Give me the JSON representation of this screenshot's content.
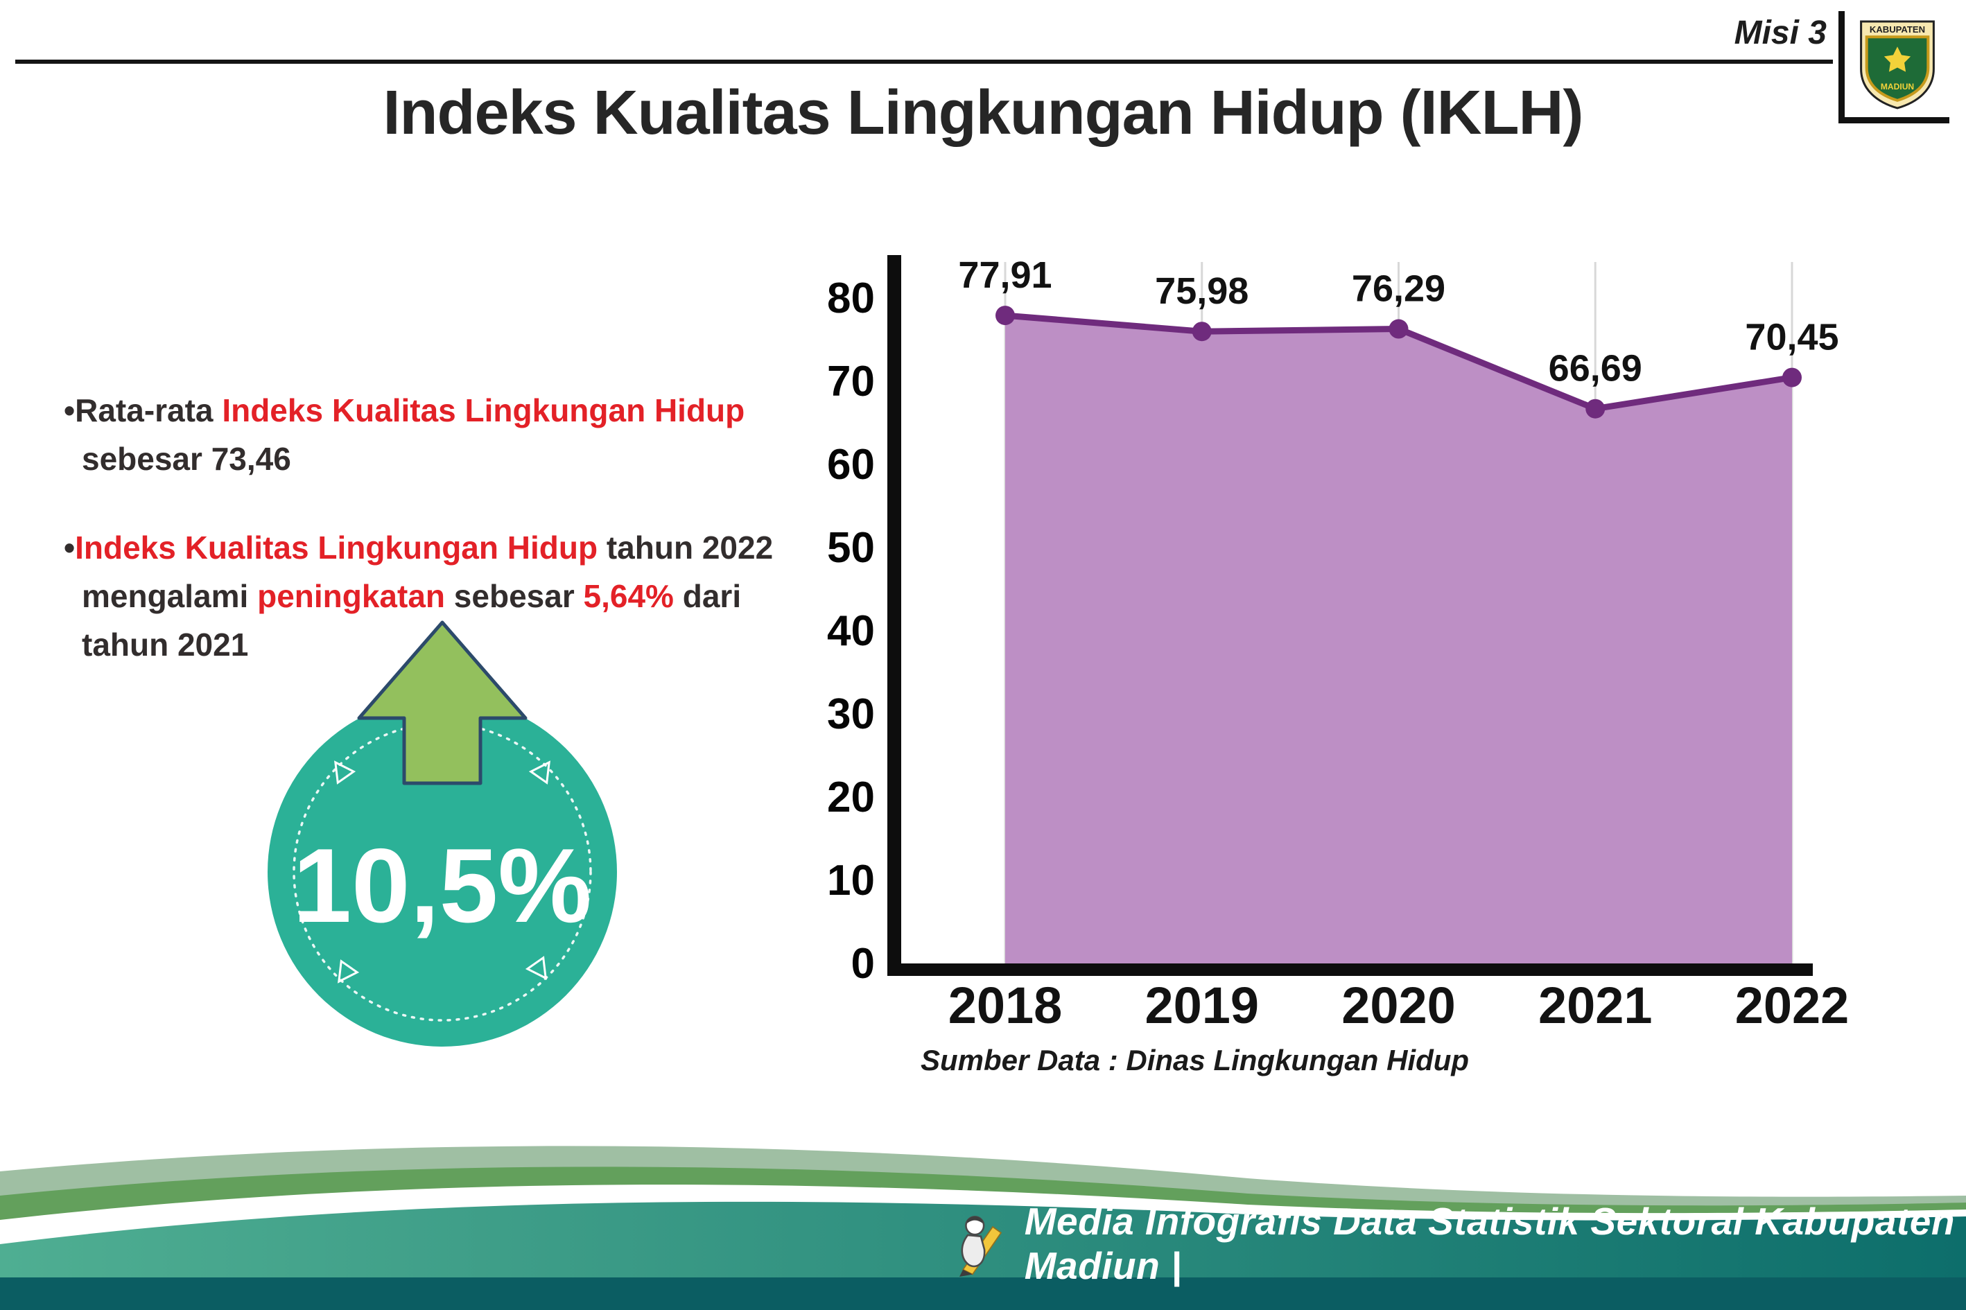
{
  "page": {
    "misi_label": "Misi 3",
    "title": "Indeks Kualitas Lingkungan Hidup (IKLH)"
  },
  "logo": {
    "top_text": "KABUPATEN",
    "bottom_text": "MADIUN"
  },
  "bullets": [
    {
      "marker": "•",
      "segments": [
        {
          "text": "Rata-rata ",
          "red": false
        },
        {
          "text": "Indeks Kualitas Lingkungan Hidup",
          "red": true
        },
        {
          "text": " sebesar 73,46",
          "red": false
        }
      ]
    },
    {
      "marker": "•",
      "segments": [
        {
          "text": "Indeks Kualitas Lingkungan Hidup",
          "red": true
        },
        {
          "text": " tahun 2022 mengalami ",
          "red": false
        },
        {
          "text": "peningkatan",
          "red": true
        },
        {
          "text": " sebesar ",
          "red": false
        },
        {
          "text": "5,64%",
          "red": true
        },
        {
          "text": " dari tahun 2021",
          "red": false
        }
      ]
    }
  ],
  "badge": {
    "value": "10,5%",
    "circle_color": "#2bb197",
    "arrow_color": "#93c05d",
    "arrow_outline": "#2c4a6b"
  },
  "chart_data": {
    "type": "area",
    "categories": [
      "2018",
      "2019",
      "2020",
      "2021",
      "2022"
    ],
    "values": [
      77.91,
      75.98,
      76.29,
      66.69,
      70.45
    ],
    "value_labels": [
      "77,91",
      "75,98",
      "76,29",
      "66,69",
      "70,45"
    ],
    "ylim": [
      0,
      80
    ],
    "yticks": [
      0,
      10,
      20,
      30,
      40,
      50,
      60,
      70,
      80
    ],
    "grid": "vertical",
    "legend": "none",
    "fill_color": "#bd8fc5",
    "line_color": "#6f2b7d",
    "source_note": "Sumber Data : Dinas Lingkungan Hidup"
  },
  "footer": {
    "text": "Media Infografis Data Statistik Sektoral Kabupaten Madiun |"
  },
  "icons": {
    "crest": "kabupaten-madiun-crest",
    "arrow": "increase-arrow-icon",
    "mascot": "infographic-mascot-icon"
  }
}
